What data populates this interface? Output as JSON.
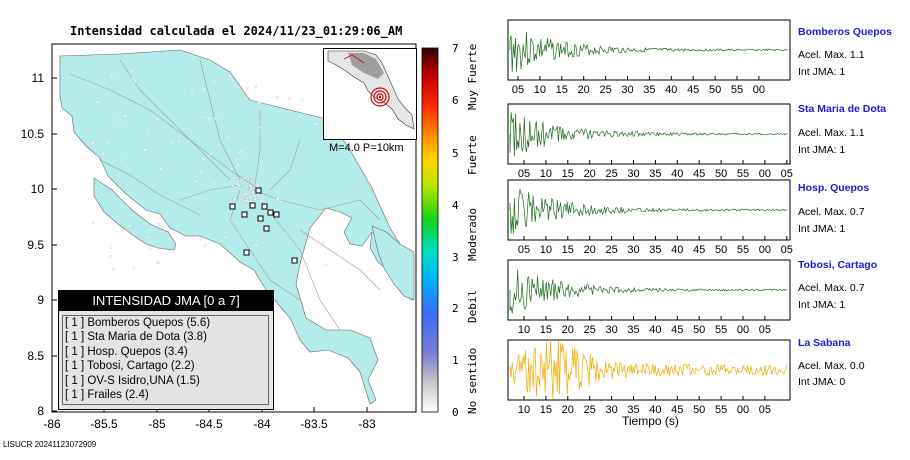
{
  "title": "Intensidad calculada el 2024/11/23_01:29:06_AM",
  "map": {
    "y_ticks": [
      "11",
      "10.5",
      "10",
      "9.5",
      "9",
      "8.5",
      "8"
    ],
    "x_ticks": [
      "-86",
      "-85.5",
      "-85",
      "-84.5",
      "-84",
      "-83.5",
      "-83"
    ],
    "land_color": "#b4ecec",
    "sea_color": "#ffffff"
  },
  "legend": {
    "header": "INTENSIDAD JMA [0 a 7]",
    "rows": [
      "[ 1 ]  Bomberos Quepos (5.6)",
      "[ 1 ]  Sta Maria de Dota (3.8)",
      "[ 1 ]  Hosp. Quepos (3.4)",
      "[ 1 ]  Tobosi, Cartago (2.2)",
      "[ 1 ]  OV-S Isidro,UNA (1.5)",
      "[ 1 ]  Frailes (2.4)"
    ]
  },
  "inset": {
    "caption": "M=4.0 P=10km"
  },
  "colorbar": {
    "numbers": [
      "7",
      "6",
      "5",
      "4",
      "3",
      "2",
      "1",
      "0"
    ],
    "labels": [
      "Muy Fuerte",
      "Fuerte",
      "Moderado",
      "Debil",
      "No sentido"
    ]
  },
  "footer": "LISUCR 20241123072909",
  "panels": [
    {
      "station": "Bomberos Quepos",
      "accel": "Acel. Max. 1.1",
      "int": "Int JMA: 1",
      "color": "#1d6e1d",
      "ticks": [
        "05",
        "10",
        "15",
        "20",
        "25",
        "30",
        "35",
        "40",
        "45",
        "50",
        "55",
        "00"
      ]
    },
    {
      "station": "Sta Maria de Dota",
      "accel": "Acel. Max. 1.1",
      "int": "Int JMA: 1",
      "color": "#1d6e1d",
      "ticks": [
        "05",
        "10",
        "15",
        "20",
        "25",
        "30",
        "35",
        "40",
        "45",
        "50",
        "55",
        "00",
        "05"
      ]
    },
    {
      "station": "Hosp. Quepos",
      "accel": "Acel. Max. 0.7",
      "int": "Int JMA: 1",
      "color": "#1d6e1d",
      "ticks": [
        "05",
        "10",
        "15",
        "20",
        "25",
        "30",
        "35",
        "40",
        "45",
        "50",
        "55",
        "00",
        "05"
      ]
    },
    {
      "station": "Tobosi, Cartago",
      "accel": "Acel. Max. 0.7",
      "int": "Int JMA: 1",
      "color": "#1d6e1d",
      "ticks": [
        "10",
        "15",
        "20",
        "25",
        "30",
        "35",
        "40",
        "45",
        "50",
        "55",
        "00",
        "05"
      ]
    },
    {
      "station": "La Sabana",
      "accel": "Acel. Max. 0.0",
      "int": "Int JMA: 0",
      "color": "#f5a800",
      "ticks": [
        "10",
        "15",
        "20",
        "25",
        "30",
        "35",
        "40",
        "45",
        "50",
        "55",
        "00",
        "05"
      ]
    }
  ],
  "xlabel": "Tiempo (s)"
}
